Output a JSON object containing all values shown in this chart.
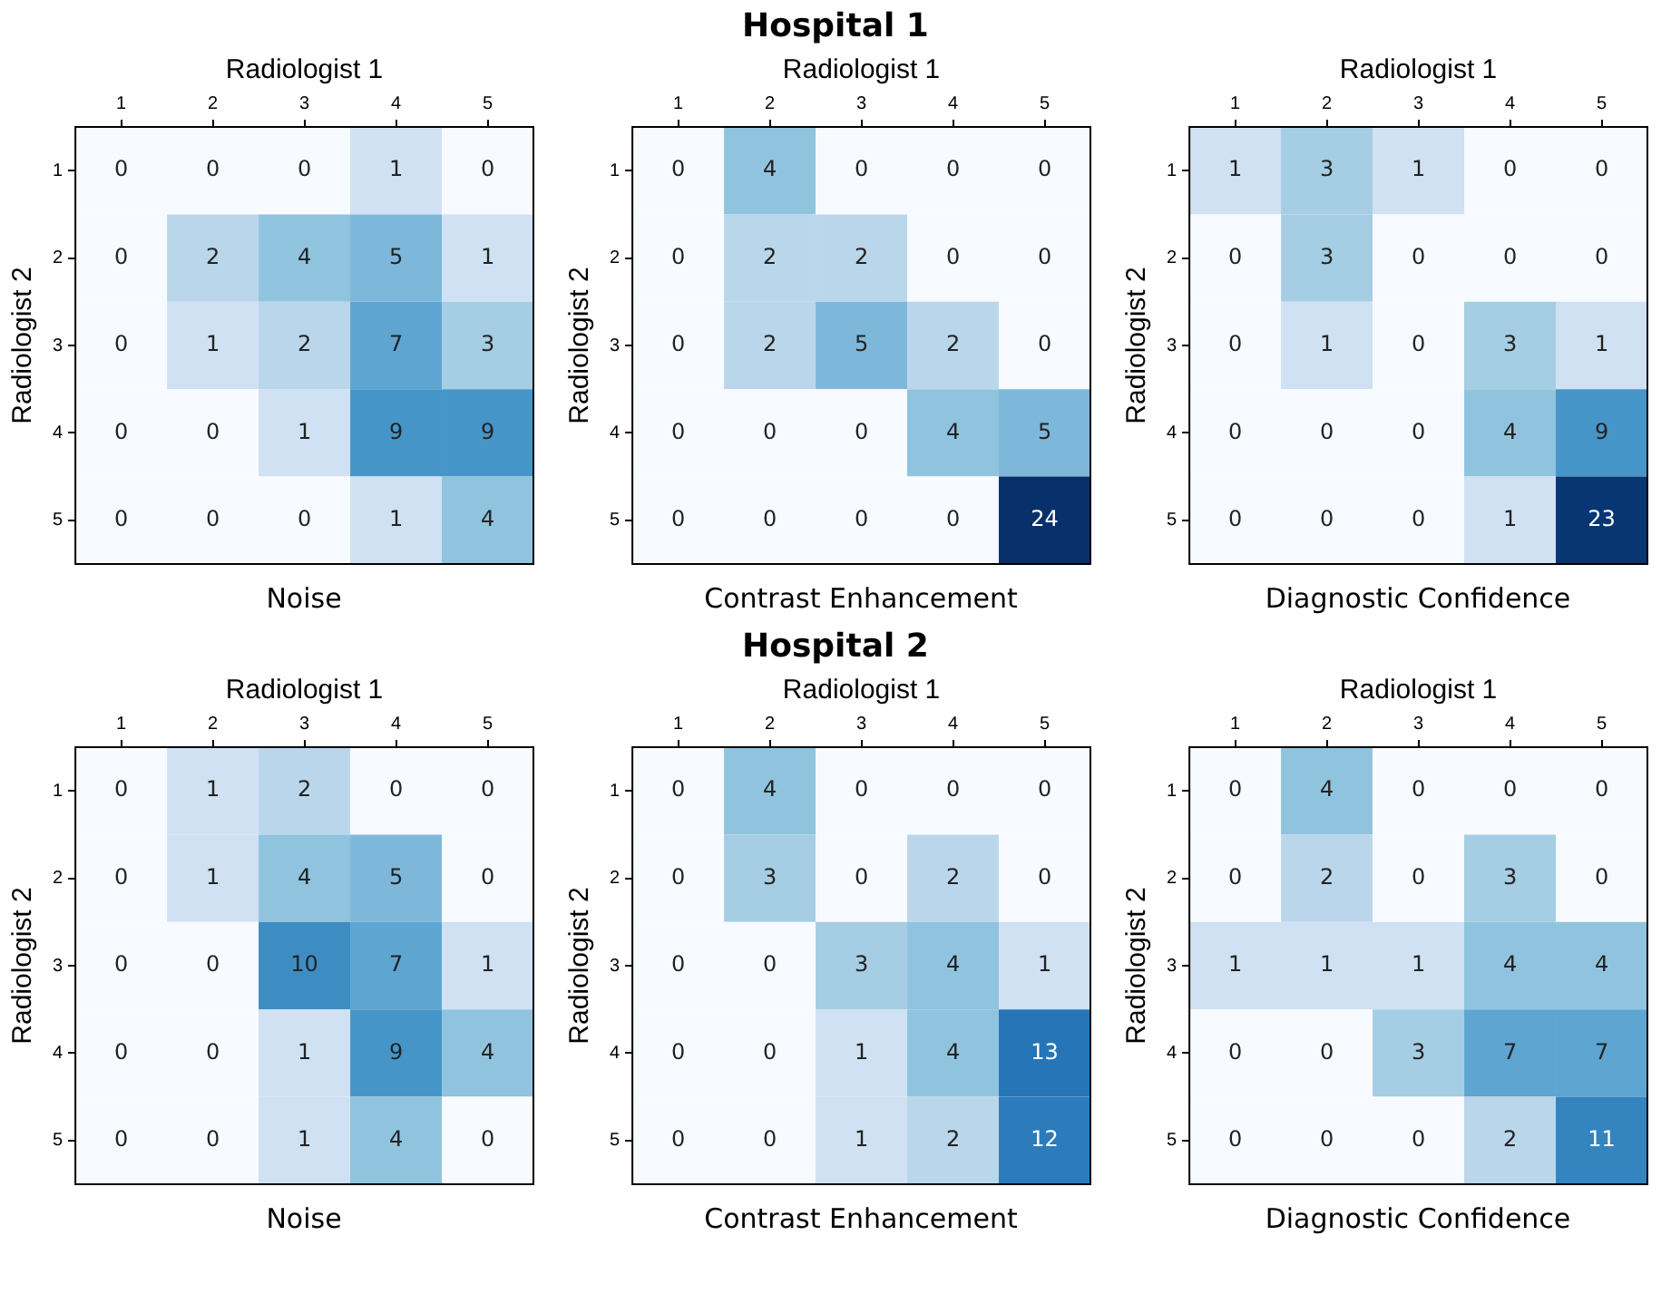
{
  "chart_data": [
    {
      "type": "heatmap",
      "xlabel": "Noise",
      "x2label": "Radiologist 1",
      "ylabel": "Radiologist 2",
      "categories": [
        "1",
        "2",
        "3",
        "4",
        "5"
      ],
      "y_categories": [
        "1",
        "2",
        "3",
        "4",
        "5"
      ],
      "data_labels": true,
      "cells": [
        [
          0,
          0,
          0,
          1,
          0
        ],
        [
          0,
          2,
          4,
          5,
          1
        ],
        [
          0,
          1,
          2,
          7,
          3
        ],
        [
          0,
          0,
          1,
          9,
          9
        ],
        [
          0,
          0,
          0,
          1,
          4
        ]
      ]
    },
    {
      "type": "heatmap",
      "title": "Hospital 1",
      "xlabel": "Contrast Enhancement",
      "x2label": "Radiologist 1",
      "ylabel": "Radiologist 2",
      "categories": [
        "1",
        "2",
        "3",
        "4",
        "5"
      ],
      "y_categories": [
        "1",
        "2",
        "3",
        "4",
        "5"
      ],
      "data_labels": true,
      "cells": [
        [
          0,
          4,
          0,
          0,
          0
        ],
        [
          0,
          2,
          2,
          0,
          0
        ],
        [
          0,
          2,
          5,
          2,
          0
        ],
        [
          0,
          0,
          0,
          4,
          5
        ],
        [
          0,
          0,
          0,
          0,
          24
        ]
      ]
    },
    {
      "type": "heatmap",
      "xlabel": "Diagnostic Confidence",
      "x2label": "Radiologist 1",
      "ylabel": "Radiologist 2",
      "categories": [
        "1",
        "2",
        "3",
        "4",
        "5"
      ],
      "y_categories": [
        "1",
        "2",
        "3",
        "4",
        "5"
      ],
      "data_labels": true,
      "cells": [
        [
          1,
          3,
          1,
          0,
          0
        ],
        [
          0,
          3,
          0,
          0,
          0
        ],
        [
          0,
          1,
          0,
          3,
          1
        ],
        [
          0,
          0,
          0,
          4,
          9
        ],
        [
          0,
          0,
          0,
          1,
          23
        ]
      ]
    },
    {
      "type": "heatmap",
      "xlabel": "Noise",
      "x2label": "Radiologist 1",
      "ylabel": "Radiologist 2",
      "categories": [
        "1",
        "2",
        "3",
        "4",
        "5"
      ],
      "y_categories": [
        "1",
        "2",
        "3",
        "4",
        "5"
      ],
      "data_labels": true,
      "cells": [
        [
          0,
          1,
          2,
          0,
          0
        ],
        [
          0,
          1,
          4,
          5,
          0
        ],
        [
          0,
          0,
          10,
          7,
          1
        ],
        [
          0,
          0,
          1,
          9,
          4
        ],
        [
          0,
          0,
          1,
          4,
          0
        ]
      ]
    },
    {
      "type": "heatmap",
      "title": "Hospital 2",
      "xlabel": "Contrast Enhancement",
      "x2label": "Radiologist 1",
      "ylabel": "Radiologist 2",
      "categories": [
        "1",
        "2",
        "3",
        "4",
        "5"
      ],
      "y_categories": [
        "1",
        "2",
        "3",
        "4",
        "5"
      ],
      "data_labels": true,
      "cells": [
        [
          0,
          4,
          0,
          0,
          0
        ],
        [
          0,
          3,
          0,
          2,
          0
        ],
        [
          0,
          0,
          3,
          4,
          1
        ],
        [
          0,
          0,
          1,
          4,
          13
        ],
        [
          0,
          0,
          1,
          2,
          12
        ]
      ]
    },
    {
      "type": "heatmap",
      "xlabel": "Diagnostic Confidence",
      "x2label": "Radiologist 1",
      "ylabel": "Radiologist 2",
      "categories": [
        "1",
        "2",
        "3",
        "4",
        "5"
      ],
      "y_categories": [
        "1",
        "2",
        "3",
        "4",
        "5"
      ],
      "data_labels": true,
      "cells": [
        [
          0,
          4,
          0,
          0,
          0
        ],
        [
          0,
          2,
          0,
          3,
          0
        ],
        [
          1,
          1,
          1,
          4,
          4
        ],
        [
          0,
          0,
          3,
          7,
          7
        ],
        [
          0,
          0,
          0,
          2,
          11
        ]
      ]
    }
  ]
}
